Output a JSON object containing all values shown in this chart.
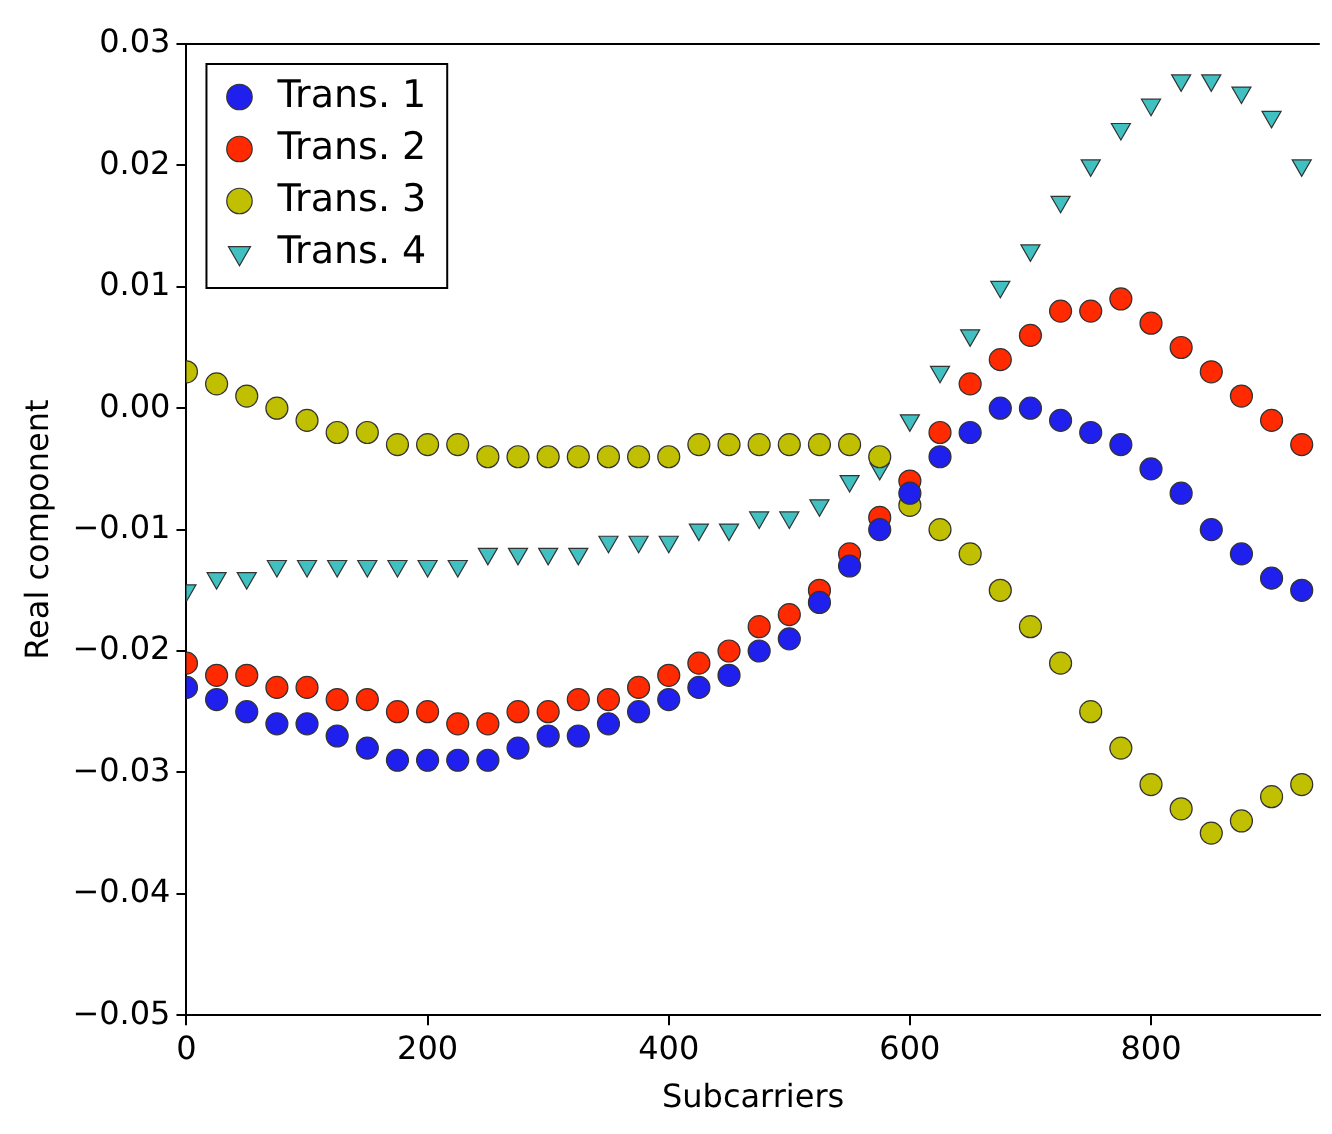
{
  "chart_data": {
    "type": "scatter",
    "xlabel": "Subcarriers",
    "ylabel": "Real component",
    "xlim": [
      0,
      940
    ],
    "ylim": [
      -0.05,
      0.03
    ],
    "xticks": [
      0,
      200,
      400,
      600,
      800
    ],
    "yticks": [
      {
        "value": -0.05,
        "label": "−0.05"
      },
      {
        "value": -0.04,
        "label": "−0.04"
      },
      {
        "value": -0.03,
        "label": "−0.03"
      },
      {
        "value": -0.02,
        "label": "−0.02"
      },
      {
        "value": -0.01,
        "label": "−0.01"
      },
      {
        "value": 0,
        "label": "0.00"
      },
      {
        "value": 0.01,
        "label": "0.01"
      },
      {
        "value": 0.02,
        "label": "0.02"
      },
      {
        "value": 0.03,
        "label": "0.03"
      }
    ],
    "grid": false,
    "legend": "top left",
    "x": [
      0,
      25,
      50,
      75,
      100,
      125,
      150,
      175,
      200,
      225,
      250,
      275,
      300,
      325,
      350,
      375,
      400,
      425,
      450,
      475,
      500,
      525,
      550,
      575,
      600,
      625,
      650,
      675,
      700,
      725,
      750,
      775,
      800,
      825,
      850,
      875,
      900,
      925
    ],
    "series": [
      {
        "name": "Trans. 1",
        "color": "#2020ee",
        "marker": "circle",
        "values": [
          -0.023,
          -0.024,
          -0.025,
          -0.026,
          -0.026,
          -0.027,
          -0.028,
          -0.029,
          -0.029,
          -0.029,
          -0.029,
          -0.028,
          -0.027,
          -0.027,
          -0.026,
          -0.025,
          -0.024,
          -0.023,
          -0.022,
          -0.02,
          -0.019,
          -0.016,
          -0.013,
          -0.01,
          -0.007,
          -0.004,
          -0.002,
          0.0,
          0.0,
          -0.001,
          -0.002,
          -0.003,
          -0.005,
          -0.007,
          -0.01,
          -0.012,
          -0.014,
          -0.015
        ]
      },
      {
        "name": "Trans. 2",
        "color": "#ff2a00",
        "marker": "circle",
        "values": [
          -0.021,
          -0.022,
          -0.022,
          -0.023,
          -0.023,
          -0.024,
          -0.024,
          -0.025,
          -0.025,
          -0.026,
          -0.026,
          -0.025,
          -0.025,
          -0.024,
          -0.024,
          -0.023,
          -0.022,
          -0.021,
          -0.02,
          -0.018,
          -0.017,
          -0.015,
          -0.012,
          -0.009,
          -0.006,
          -0.002,
          0.002,
          0.004,
          0.006,
          0.008,
          0.008,
          0.009,
          0.007,
          0.005,
          0.003,
          0.001,
          -0.001,
          -0.003
        ]
      },
      {
        "name": "Trans. 3",
        "color": "#c0c000",
        "marker": "circle",
        "values": [
          0.003,
          0.002,
          0.001,
          0.0,
          -0.001,
          -0.002,
          -0.002,
          -0.003,
          -0.003,
          -0.003,
          -0.004,
          -0.004,
          -0.004,
          -0.004,
          -0.004,
          -0.004,
          -0.004,
          -0.003,
          -0.003,
          -0.003,
          -0.003,
          -0.003,
          -0.003,
          -0.004,
          -0.008,
          -0.01,
          -0.012,
          -0.015,
          -0.018,
          -0.021,
          -0.025,
          -0.028,
          -0.031,
          -0.033,
          -0.035,
          -0.034,
          -0.032,
          -0.031
        ]
      },
      {
        "name": "Trans. 4",
        "color": "#40c0c0",
        "marker": "triangle",
        "values": [
          -0.015,
          -0.014,
          -0.014,
          -0.013,
          -0.013,
          -0.013,
          -0.013,
          -0.013,
          -0.013,
          -0.013,
          -0.012,
          -0.012,
          -0.012,
          -0.012,
          -0.011,
          -0.011,
          -0.011,
          -0.01,
          -0.01,
          -0.009,
          -0.009,
          -0.008,
          -0.006,
          -0.005,
          -0.001,
          0.003,
          0.006,
          0.01,
          0.013,
          0.017,
          0.02,
          0.023,
          0.025,
          0.027,
          0.027,
          0.026,
          0.024,
          0.02
        ]
      }
    ]
  }
}
